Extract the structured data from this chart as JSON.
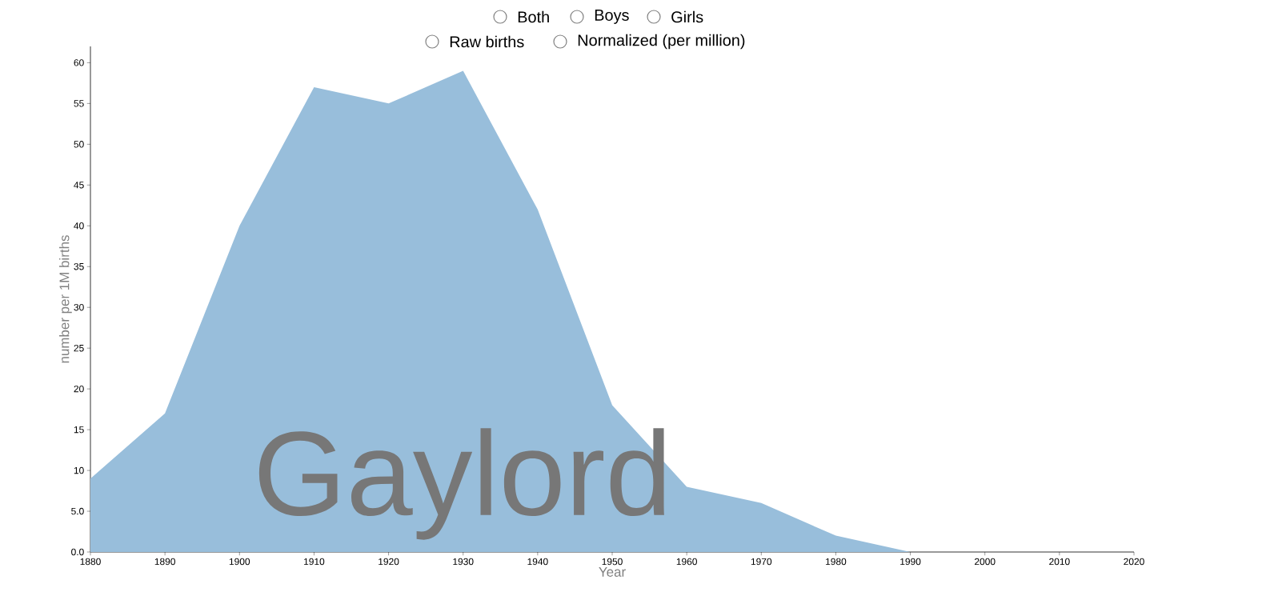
{
  "chart_data": {
    "type": "area",
    "x": [
      1880,
      1890,
      1900,
      1910,
      1920,
      1930,
      1940,
      1950,
      1960,
      1970,
      1980,
      1990
    ],
    "values": [
      9,
      17,
      40,
      57,
      55,
      59,
      42,
      18,
      8,
      6,
      2,
      0
    ],
    "color": "#98bedb",
    "xlim": [
      1880,
      2020
    ],
    "xticks": [
      1880,
      1890,
      1900,
      1910,
      1920,
      1930,
      1940,
      1950,
      1960,
      1970,
      1980,
      1990,
      2000,
      2010,
      2020
    ],
    "ylim": [
      0,
      62
    ],
    "yticks": [
      {
        "value": 0,
        "label": "0.0"
      },
      {
        "value": 5,
        "label": "5.0"
      },
      10,
      15,
      20,
      25,
      30,
      35,
      40,
      45,
      50,
      55,
      60
    ],
    "xlabel": "Year",
    "ylabel": "number per 1M births",
    "annotations": [
      "Gaylord",
      "Both",
      "Boys",
      "Girls",
      "Raw births",
      "Normalized (per million)"
    ]
  }
}
